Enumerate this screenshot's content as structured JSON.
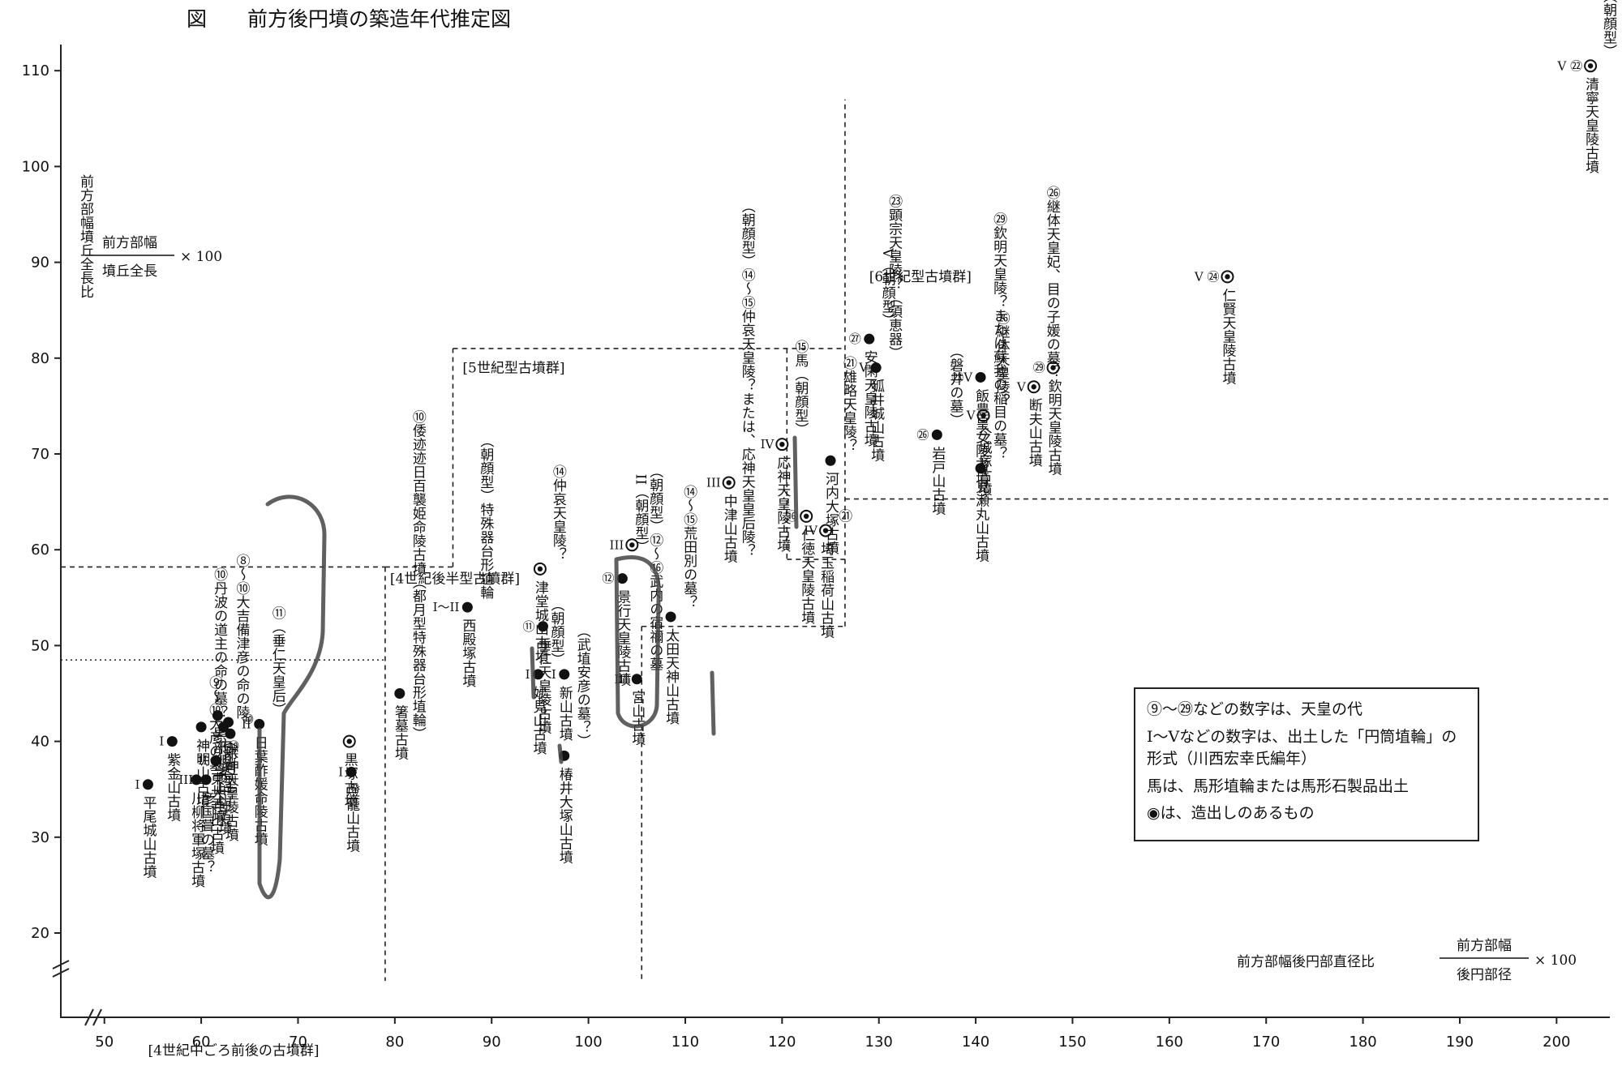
{
  "title": "図　　前方後円墳の築造年代推定図",
  "chart_data": {
    "type": "scatter",
    "xlabel": "前方部幅後円部直径比",
    "xformula": {
      "numerator": "前方部幅",
      "denominator": "後円部径",
      "multiplier": "× 100"
    },
    "ylabel": "前方部幅墳丘全長比",
    "yformula": {
      "numerator": "前方部幅",
      "denominator": "墳丘全長",
      "multiplier": "× 100"
    },
    "xlim": [
      50,
      200
    ],
    "ylim": [
      20,
      110
    ],
    "x_ticks": [
      50,
      60,
      70,
      80,
      90,
      100,
      110,
      120,
      130,
      140,
      150,
      160,
      170,
      180,
      190,
      200
    ],
    "y_ticks": [
      20,
      30,
      40,
      50,
      60,
      70,
      80,
      90,
      100,
      110
    ],
    "groups": [
      {
        "label": "[4世紀中ごろ前後の古墳群]"
      },
      {
        "label": "[4世紀後半型古墳群]"
      },
      {
        "label": "[5世紀型古墳群]"
      },
      {
        "label": "[6世紀型古墳群]"
      }
    ],
    "points": [
      {
        "x": 54.5,
        "y": 35.5,
        "mark": "I",
        "label": "平尾城山古墳",
        "sub": ""
      },
      {
        "x": 57.0,
        "y": 40.0,
        "mark": "I",
        "label": "紫金山古墳",
        "sub": ""
      },
      {
        "x": 59.5,
        "y": 36.0,
        "mark": "II",
        "label": "川柳将軍塚古墳",
        "sub": "⑨〜⑩大彦の墓"
      },
      {
        "x": 60.5,
        "y": 36.0,
        "mark": "II",
        "label": "彦国葺の墓？",
        "sub": ""
      },
      {
        "x": 60.0,
        "y": 41.5,
        "mark": "",
        "label": "神明山古墳",
        "sub": "⑩丹波の道主の命の墓？"
      },
      {
        "x": 61.7,
        "y": 42.7,
        "mark": "",
        "label": "黒部銚子山古墳",
        "sub": ""
      },
      {
        "x": 62.3,
        "y": 41.5,
        "mark": "",
        "label": "中山茶臼山古墳",
        "sub": "⑧〜⑩大吉備津彦の命の陵"
      },
      {
        "x": 62.8,
        "y": 42.0,
        "mark": "",
        "label": "（都月型）",
        "sub": ""
      },
      {
        "x": 61.5,
        "y": 38.0,
        "mark": "II",
        "label": "東大寺山古墳",
        "sub": "⑩"
      },
      {
        "x": 63.0,
        "y": 40.8,
        "mark": "",
        "label": "崇神天皇陵古墳",
        "sub": "⑩"
      },
      {
        "x": 66.0,
        "y": 41.8,
        "mark": "II",
        "label": "日葉酢媛命陵古墳",
        "sub": "⑪（垂仁天皇后）"
      },
      {
        "x": 75.3,
        "y": 40.0,
        "mark": "",
        "ring": true,
        "label": "黒塚古墳",
        "sub": ""
      },
      {
        "x": 75.5,
        "y": 36.8,
        "mark": "I",
        "label": "燈籠山古墳",
        "sub": ""
      },
      {
        "x": 80.5,
        "y": 45.0,
        "mark": "",
        "label": "箸墓古墳",
        "sub": "⑩倭迹迹日百襲姫命陵古墳（都月型特殊器台形埴輪）"
      },
      {
        "x": 87.5,
        "y": 54.0,
        "mark": "I〜II",
        "label": "西殿塚古墳",
        "sub": "（朝顔型）特殊器台形埴輪"
      },
      {
        "x": 94.8,
        "y": 47.0,
        "mark": "I",
        "label": "妙見山古墳",
        "sub": "（朝顔型）"
      },
      {
        "x": 95.0,
        "y": 58.0,
        "mark": "",
        "ring": true,
        "label": "津堂城山古墳",
        "sub": "⑭仲哀天皇陵？"
      },
      {
        "x": 95.3,
        "y": 52.0,
        "mark": "⑪",
        "label": "垂仁天皇陵古墳",
        "sub": ""
      },
      {
        "x": 97.5,
        "y": 47.0,
        "mark": "I",
        "label": "新山古墳",
        "sub": ""
      },
      {
        "x": 97.5,
        "y": 38.5,
        "mark": "",
        "label": "椿井大塚山古墳",
        "sub": "（武埴安彦の墓？）"
      },
      {
        "x": 103.5,
        "y": 57.0,
        "mark": "⑫",
        "label": "景行天皇陵古墳",
        "sub": "II（朝顔型）"
      },
      {
        "x": 104.5,
        "y": 60.5,
        "mark": "III",
        "ring": true,
        "label": "",
        "sub": ""
      },
      {
        "x": 105.0,
        "y": 46.5,
        "mark": "III",
        "label": "宮山古墳",
        "sub": "（朝顔型）⑫〜⑯武内の宿禰の墓"
      },
      {
        "x": 108.5,
        "y": 53.0,
        "mark": "",
        "label": "太田天神山古墳",
        "sub": "⑭〜⑮荒田別の墓？"
      },
      {
        "x": 114.5,
        "y": 67.0,
        "mark": "III",
        "ring": true,
        "label": "中津山古墳",
        "sub": "（朝顔型）⑭〜⑮仲哀天皇陵？または、応神天皇皇后陵？"
      },
      {
        "x": 120.0,
        "y": 71.0,
        "mark": "IV",
        "ring": true,
        "label": "応神天皇陵古墳",
        "sub": "⑮馬（朝顔型）"
      },
      {
        "x": 122.5,
        "y": 63.5,
        "mark": "⑯",
        "ring": true,
        "label": "仁徳天皇陵古墳",
        "sub": ""
      },
      {
        "x": 124.5,
        "y": 62.0,
        "mark": "IV",
        "ring": true,
        "label": "埼玉稲荷山古墳",
        "sub": "㉑"
      },
      {
        "x": 125.0,
        "y": 69.3,
        "mark": "",
        "label": "河内大塚古墳",
        "sub": "㉑雄略天皇陵？"
      },
      {
        "x": 129.0,
        "y": 82.0,
        "mark": "㉗",
        "label": "安閑天皇陵古墳",
        "sub": "V（朝顔型）"
      },
      {
        "x": 129.7,
        "y": 79.0,
        "mark": "V",
        "label": "狐井城山古墳",
        "sub": "㉓顕宗天皇陵？（須恵器）"
      },
      {
        "x": 136.0,
        "y": 72.0,
        "mark": "㉖",
        "label": "岩戸山古墳",
        "sub": "（磐井の墓）"
      },
      {
        "x": 140.5,
        "y": 78.0,
        "mark": "㉓V",
        "label": "飯豊皇女陵古墳",
        "sub": ""
      },
      {
        "x": 140.8,
        "y": 74.0,
        "mark": "V",
        "ring": true,
        "label": "今城塚古墳",
        "sub": "㉖継体天皇陵？"
      },
      {
        "x": 140.5,
        "y": 68.5,
        "mark": "",
        "label": "見瀬丸山古墳",
        "sub": "㉙欽明天皇陵？または蘇我の稲目の墓？"
      },
      {
        "x": 146.0,
        "y": 77.0,
        "mark": "V",
        "ring": true,
        "label": "断夫山古墳",
        "sub": "㉖継体天皇妃、目の子媛の墓？"
      },
      {
        "x": 148.0,
        "y": 79.0,
        "mark": "㉙",
        "ring": true,
        "label": "欽明天皇陵古墳",
        "sub": ""
      },
      {
        "x": 166.0,
        "y": 88.5,
        "mark": "V ㉔",
        "ring": true,
        "label": "仁賢天皇陵古墳",
        "sub": ""
      },
      {
        "x": 203.5,
        "y": 110.5,
        "mark": "V ㉒",
        "ring": true,
        "label": "清寧天皇陵古墳",
        "sub": "（朝顔型）"
      }
    ]
  },
  "legend": {
    "items": [
      "⑨〜㉙などの数字は、天皇の代",
      "I〜Vなどの数字は、出土した「円筒埴輪」の形式（川西宏幸氏編年）",
      "馬は、馬形埴輪または馬形石製品出土",
      "◉は、造出しのあるもの"
    ]
  }
}
